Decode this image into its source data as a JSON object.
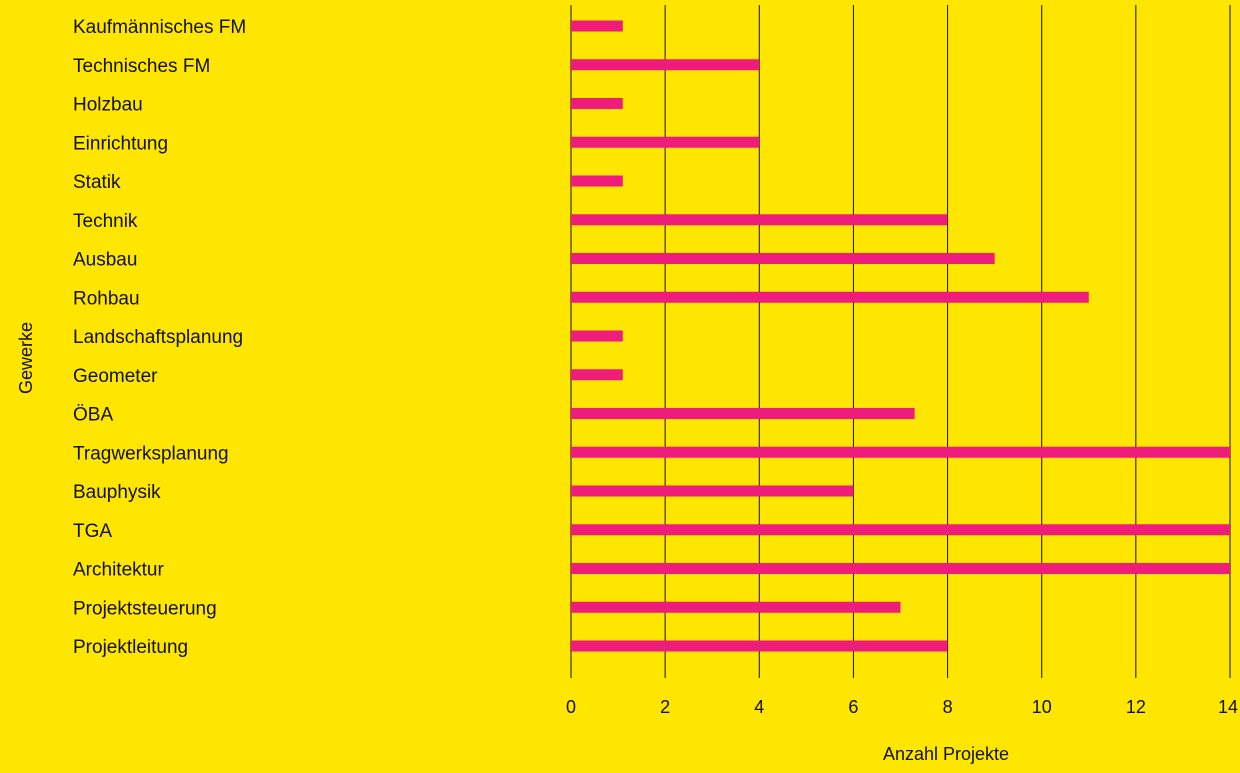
{
  "chart_data": {
    "type": "bar",
    "orientation": "horizontal",
    "categories": [
      "Kaufmännisches FM",
      "Technisches FM",
      "Holzbau",
      "Einrichtung",
      "Statik",
      "Technik",
      "Ausbau",
      "Rohbau",
      "Landschaftsplanung",
      "Geometer",
      "ÖBA",
      "Tragwerksplanung",
      "Bauphysik",
      "TGA",
      "Architektur",
      "Projektsteuerung",
      "Projektleitung"
    ],
    "values": [
      1.1,
      4,
      1.1,
      4,
      1.1,
      8,
      9,
      11,
      1.1,
      1.1,
      7.3,
      14,
      6,
      14,
      14,
      7,
      8
    ],
    "xlabel": "Anzahl Projekte",
    "ylabel": "Gewerke",
    "xlim": [
      0,
      14
    ],
    "xticks": [
      "0",
      "2",
      "4",
      "6",
      "8",
      "10",
      "12",
      "14"
    ],
    "grid": "vertical",
    "legend": "none",
    "colors": {
      "background": "#FFE600",
      "bar": "#EE1C7A",
      "grid": "#111111",
      "text": "#111111"
    }
  }
}
